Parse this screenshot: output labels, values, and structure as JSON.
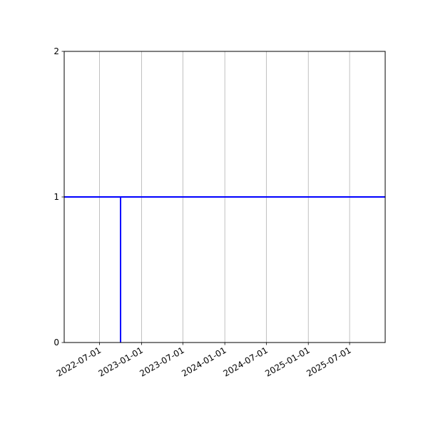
{
  "chart_data": {
    "type": "line",
    "title": "",
    "xlabel": "",
    "ylabel": "",
    "x_axis_type": "date",
    "xlim": [
      "2022-01-27",
      "2025-12-04"
    ],
    "ylim": [
      0,
      2
    ],
    "x_ticks": [
      "2022-07-01",
      "2023-01-01",
      "2023-07-01",
      "2024-01-01",
      "2024-07-01",
      "2025-01-01",
      "2025-07-01"
    ],
    "y_ticks": [
      0,
      1,
      2
    ],
    "grid": "vertical (x) only",
    "legend": "none",
    "series": [
      {
        "color": "#0000ff",
        "points": [
          {
            "x": "2022-01-27",
            "y": 1
          },
          {
            "x": "2025-12-04",
            "y": 1
          }
        ]
      },
      {
        "color": "#0000ff",
        "points": [
          {
            "x": "2022-10-01",
            "y": 0
          },
          {
            "x": "2022-10-01",
            "y": 1
          }
        ]
      }
    ]
  }
}
